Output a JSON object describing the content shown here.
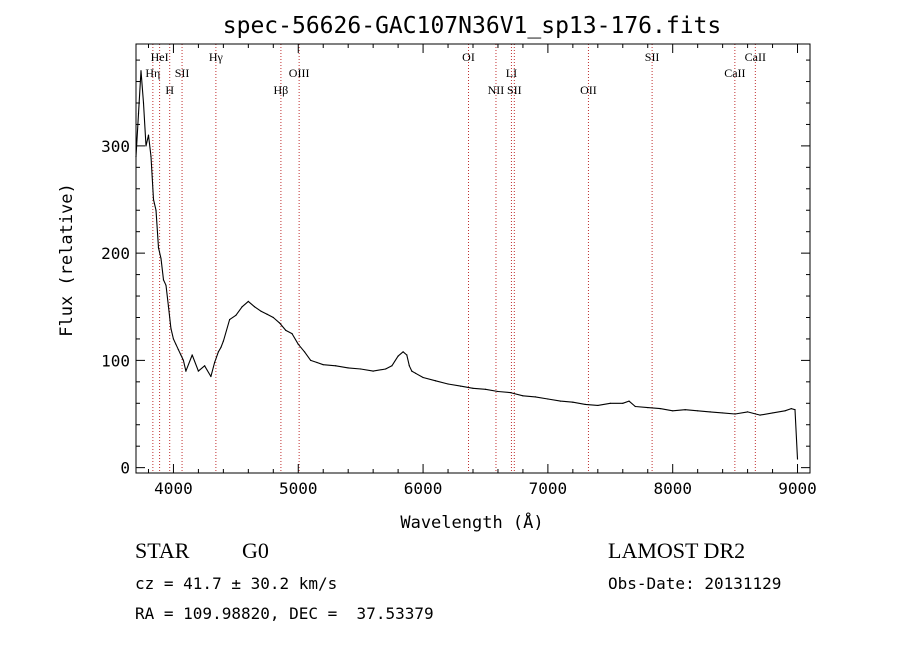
{
  "chart_data": {
    "type": "line",
    "title": "spec-56626-GAC107N36V1_sp13-176.fits",
    "xlabel": "Wavelength (Å)",
    "ylabel": "Flux (relative)",
    "xlim": [
      3700,
      9100
    ],
    "ylim": [
      -5,
      395
    ],
    "xticks": [
      4000,
      5000,
      6000,
      7000,
      8000,
      9000
    ],
    "yticks": [
      0,
      100,
      200,
      300
    ],
    "grid": false,
    "series": [
      {
        "x": [
          3700,
          3720,
          3740,
          3760,
          3780,
          3800,
          3820,
          3840,
          3860,
          3880,
          3900,
          3920,
          3940,
          3960,
          3980,
          4000,
          4020,
          4040,
          4060,
          4080,
          4100,
          4150,
          4200,
          4250,
          4300,
          4330,
          4360,
          4380,
          4400,
          4450,
          4500,
          4550,
          4600,
          4650,
          4700,
          4750,
          4800,
          4850,
          4900,
          4950,
          5000,
          5050,
          5100,
          5150,
          5200,
          5300,
          5400,
          5500,
          5600,
          5700,
          5750,
          5800,
          5840,
          5870,
          5890,
          5910,
          5940,
          6000,
          6100,
          6200,
          6300,
          6400,
          6500,
          6600,
          6700,
          6800,
          6900,
          7000,
          7100,
          7200,
          7300,
          7400,
          7500,
          7600,
          7650,
          7700,
          7800,
          7900,
          8000,
          8100,
          8200,
          8300,
          8400,
          8500,
          8600,
          8700,
          8800,
          8900,
          8950,
          8980,
          9000
        ],
        "y": [
          290,
          330,
          370,
          340,
          300,
          310,
          290,
          250,
          240,
          205,
          195,
          175,
          170,
          150,
          130,
          120,
          115,
          110,
          105,
          100,
          90,
          105,
          90,
          95,
          85,
          98,
          108,
          112,
          118,
          138,
          142,
          150,
          155,
          150,
          146,
          143,
          140,
          135,
          128,
          125,
          115,
          108,
          100,
          98,
          96,
          95,
          93,
          92,
          90,
          92,
          95,
          104,
          108,
          105,
          95,
          90,
          88,
          84,
          81,
          78,
          76,
          74,
          73,
          71,
          70,
          67,
          66,
          64,
          62,
          61,
          59,
          58,
          60,
          60,
          62,
          57,
          56,
          55,
          53,
          54,
          53,
          52,
          51,
          50,
          52,
          49,
          51,
          53,
          55,
          54,
          8
        ]
      }
    ],
    "lines": [
      {
        "label": "Hη",
        "x": 3835,
        "row": 2
      },
      {
        "label": "HeI",
        "x": 3889,
        "row": 1
      },
      {
        "label": "H",
        "x": 3970,
        "row": 3
      },
      {
        "label": "SII",
        "x": 4069,
        "row": 2
      },
      {
        "label": "Hγ",
        "x": 4340,
        "row": 1
      },
      {
        "label": "Hβ",
        "x": 4861,
        "row": 3
      },
      {
        "label": "OIII",
        "x": 5007,
        "row": 2
      },
      {
        "label": "OI",
        "x": 6364,
        "row": 1
      },
      {
        "label": "NII",
        "x": 6584,
        "row": 3
      },
      {
        "label": "LI",
        "x": 6708,
        "row": 2
      },
      {
        "label": "SII",
        "x": 6731,
        "row": 3
      },
      {
        "label": "OII",
        "x": 7325,
        "row": 3
      },
      {
        "label": "SII",
        "x": 7835,
        "row": 1
      },
      {
        "label": "CaII",
        "x": 8498,
        "row": 2
      },
      {
        "label": "CaII",
        "x": 8662,
        "row": 1
      }
    ]
  },
  "info": {
    "object_class": "STAR",
    "subclass": "G0",
    "survey": "LAMOST DR2",
    "cz": "cz = 41.7 ± 30.2 km/s",
    "obs_date": "Obs-Date: 20131129",
    "coords": "RA = 109.98820, DEC =  37.53379"
  }
}
